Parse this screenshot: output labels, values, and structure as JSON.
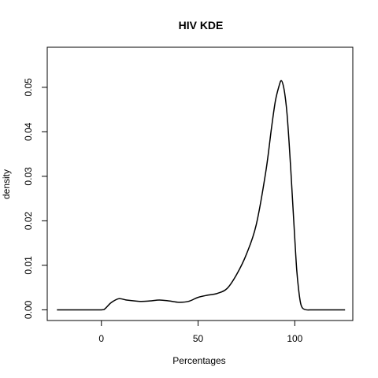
{
  "chart_data": {
    "type": "line",
    "title": "HIV  KDE",
    "xlabel": "Percentages",
    "ylabel": "density",
    "xlim": [
      -28,
      130
    ],
    "ylim": [
      -0.0024,
      0.059
    ],
    "x_ticks": [
      0,
      50,
      100
    ],
    "x_tick_labels": [
      "0",
      "50",
      "100"
    ],
    "y_ticks": [
      0.0,
      0.01,
      0.02,
      0.03,
      0.04,
      0.05
    ],
    "y_tick_labels": [
      "0.00",
      "0.01",
      "0.02",
      "0.03",
      "0.04",
      "0.05"
    ],
    "grid": false,
    "legend": false,
    "series": [
      {
        "color": "#000000",
        "x": [
          -23,
          -10,
          0,
          2,
          5,
          9,
          13,
          20,
          25,
          30,
          35,
          40,
          45,
          50,
          55,
          60,
          65,
          70,
          75,
          80,
          85,
          88,
          90,
          92,
          93,
          94,
          95,
          96,
          97,
          98,
          99,
          100,
          101,
          102,
          103,
          104,
          106,
          110,
          120,
          126
        ],
        "y": [
          0,
          0,
          0,
          0.0003,
          0.0016,
          0.0025,
          0.0022,
          0.0019,
          0.002,
          0.0022,
          0.002,
          0.0017,
          0.0019,
          0.0028,
          0.0033,
          0.0037,
          0.0048,
          0.008,
          0.0125,
          0.019,
          0.031,
          0.041,
          0.047,
          0.0505,
          0.0515,
          0.0505,
          0.048,
          0.044,
          0.038,
          0.031,
          0.0235,
          0.016,
          0.009,
          0.0045,
          0.0015,
          0.0004,
          0,
          0,
          0,
          0
        ]
      }
    ]
  }
}
